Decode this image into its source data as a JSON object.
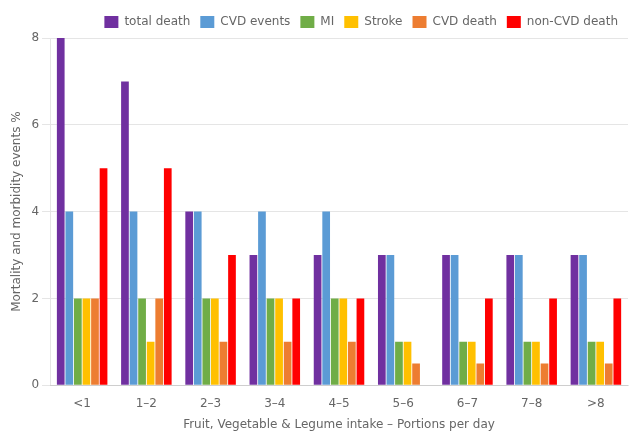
{
  "chart_data": {
    "type": "bar",
    "categories": [
      "<1",
      "1–2",
      "2–3",
      "3–4",
      "4–5",
      "5–6",
      "6–7",
      "7–8",
      ">8"
    ],
    "series": [
      {
        "name": "total death",
        "color": "#7030A0",
        "values": [
          8,
          7,
          4,
          3,
          3,
          3,
          3,
          3,
          3
        ]
      },
      {
        "name": "CVD events",
        "color": "#5B9BD5",
        "values": [
          4,
          4,
          4,
          4,
          4,
          3,
          3,
          3,
          3
        ]
      },
      {
        "name": "MI",
        "color": "#70AD47",
        "values": [
          2,
          2,
          2,
          2,
          2,
          1,
          1,
          1,
          1
        ]
      },
      {
        "name": "Stroke",
        "color": "#FFC000",
        "values": [
          2,
          1,
          2,
          2,
          2,
          1,
          1,
          1,
          1
        ]
      },
      {
        "name": "CVD death",
        "color": "#ED7D31",
        "values": [
          2,
          2,
          1,
          1,
          1,
          0.5,
          0.5,
          0.5,
          0.5
        ]
      },
      {
        "name": "non-CVD death",
        "color": "#FF0000",
        "values": [
          5,
          5,
          3,
          2,
          2,
          0,
          2,
          2,
          2
        ]
      }
    ],
    "xlabel": "Fruit, Vegetable & Legume intake – Portions per day",
    "ylabel": "Mortality and morbidity events %",
    "ylim": [
      0,
      8
    ],
    "yticks": [
      0,
      2,
      4,
      6,
      8
    ],
    "grid": true,
    "legend": "upper right"
  }
}
